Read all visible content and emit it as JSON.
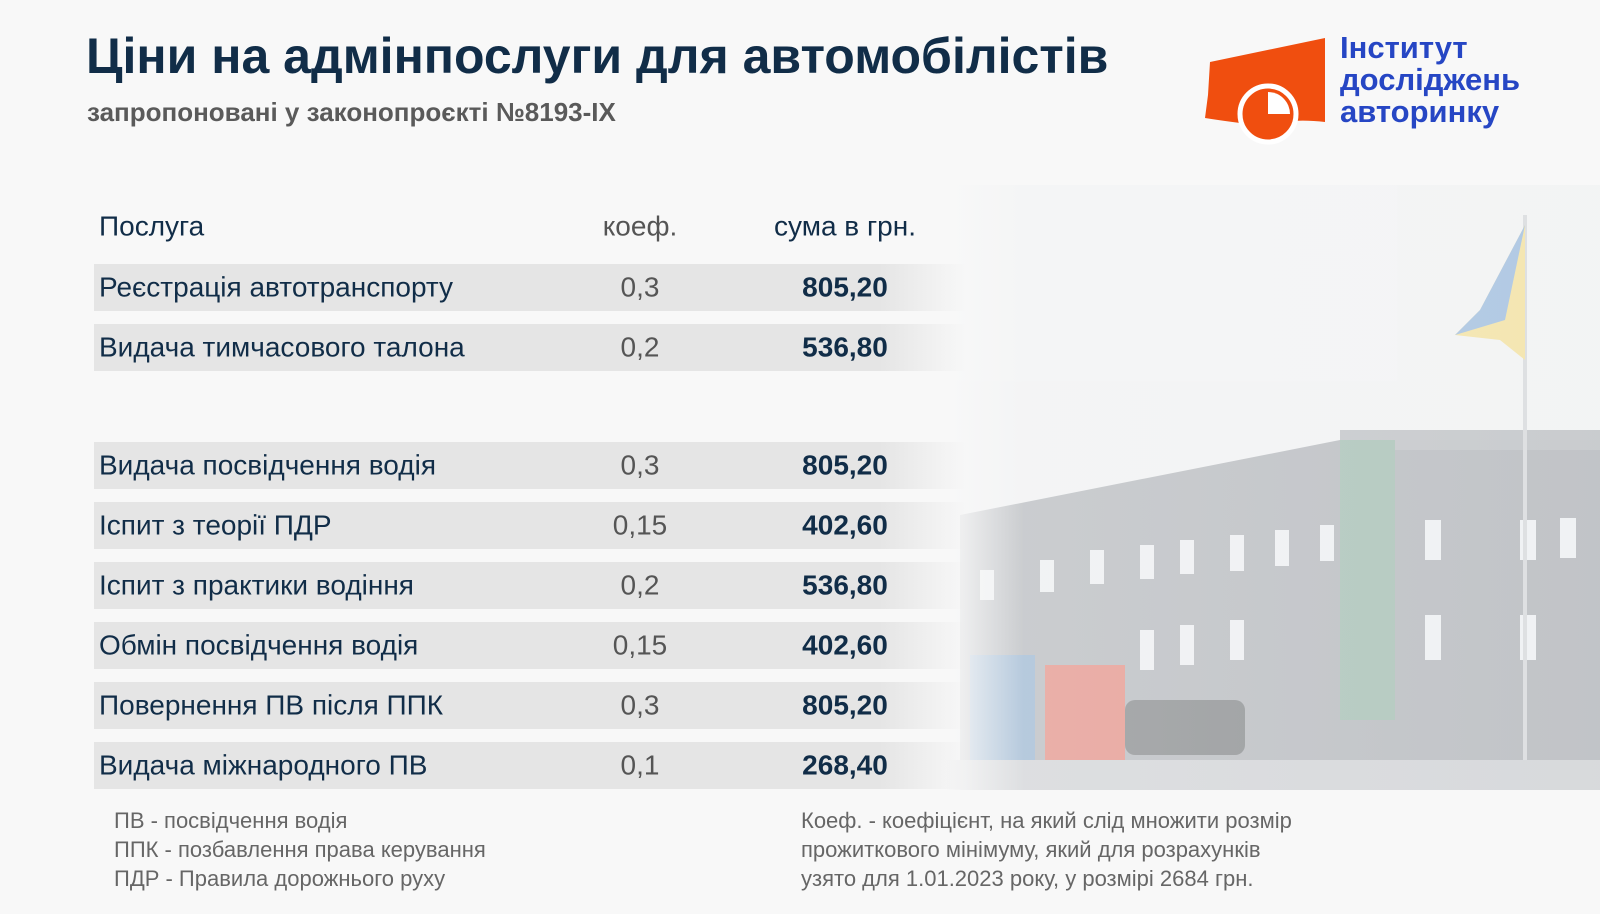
{
  "header": {
    "title": "Ціни на адмінпослуги для автомобілістів",
    "subtitle": "запропоновані у законопроєкті №8193-IX"
  },
  "logo": {
    "lines": [
      "Інститут",
      "досліджень",
      "авторинку"
    ]
  },
  "table": {
    "columns": [
      "Послуга",
      "коеф.",
      "сума в грн."
    ],
    "groups": [
      [
        [
          "Реєстрація автотранспорту",
          "0,3",
          "805,20"
        ],
        [
          "Видача тимчасового талона",
          "0,2",
          "536,80"
        ]
      ],
      [
        [
          "Видача посвідчення водія",
          "0,3",
          "805,20"
        ],
        [
          "Іспит з теорії ПДР",
          "0,15",
          "402,60"
        ],
        [
          "Іспит з практики водіння",
          "0,2",
          "536,80"
        ],
        [
          "Обмін посвідчення водія",
          "0,15",
          "402,60"
        ],
        [
          "Повернення ПВ після ППК",
          "0,3",
          "805,20"
        ],
        [
          "Видача міжнародного ПВ",
          "0,1",
          "268,40"
        ]
      ]
    ]
  },
  "notes": {
    "left": [
      "ПВ - посвідчення водія",
      "ППК - позбавлення права керування",
      "ПДР - Правила дорожнього руху"
    ],
    "right": [
      "Коеф. - коефіцієнт, на який слід множити розмір",
      "прожиткового мінімуму, який для розрахунків",
      "узято для 1.01.2023 року, у розмірі 2684 грн."
    ]
  }
}
